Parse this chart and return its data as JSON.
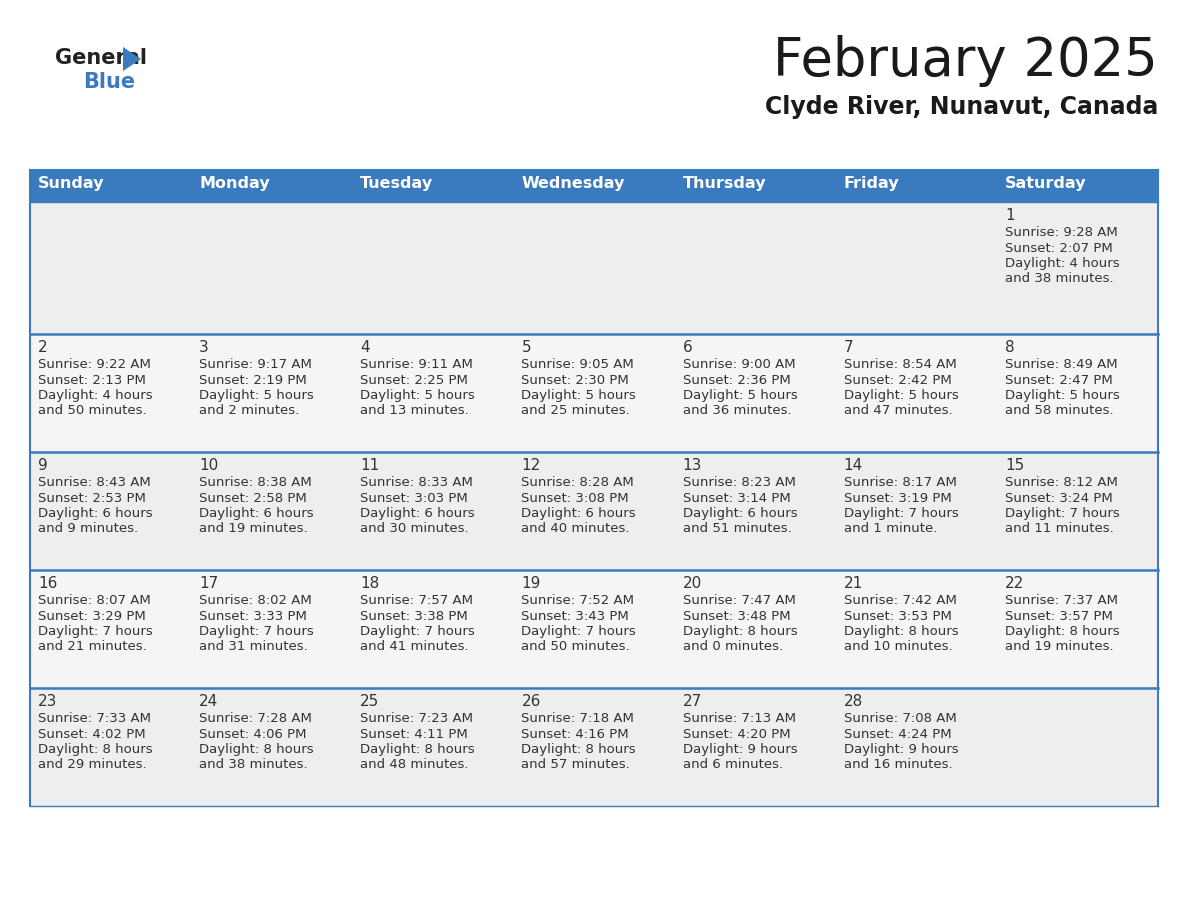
{
  "title": "February 2025",
  "subtitle": "Clyde River, Nunavut, Canada",
  "header_bg_color": "#3a7bbf",
  "header_text_color": "#ffffff",
  "cell_bg_row0": "#eeeeee",
  "cell_bg_row1": "#f5f5f5",
  "cell_bg_row2": "#eeeeee",
  "cell_bg_row3": "#f5f5f5",
  "cell_bg_row4": "#eeeeee",
  "border_color": "#3a7bbf",
  "day_names": [
    "Sunday",
    "Monday",
    "Tuesday",
    "Wednesday",
    "Thursday",
    "Friday",
    "Saturday"
  ],
  "title_color": "#1a1a1a",
  "subtitle_color": "#1a1a1a",
  "text_color": "#333333",
  "days": [
    {
      "day": 1,
      "col": 6,
      "row": 0,
      "sunrise": "9:28 AM",
      "sunset": "2:07 PM",
      "daylight": "4 hours and 38 minutes."
    },
    {
      "day": 2,
      "col": 0,
      "row": 1,
      "sunrise": "9:22 AM",
      "sunset": "2:13 PM",
      "daylight": "4 hours and 50 minutes."
    },
    {
      "day": 3,
      "col": 1,
      "row": 1,
      "sunrise": "9:17 AM",
      "sunset": "2:19 PM",
      "daylight": "5 hours and 2 minutes."
    },
    {
      "day": 4,
      "col": 2,
      "row": 1,
      "sunrise": "9:11 AM",
      "sunset": "2:25 PM",
      "daylight": "5 hours and 13 minutes."
    },
    {
      "day": 5,
      "col": 3,
      "row": 1,
      "sunrise": "9:05 AM",
      "sunset": "2:30 PM",
      "daylight": "5 hours and 25 minutes."
    },
    {
      "day": 6,
      "col": 4,
      "row": 1,
      "sunrise": "9:00 AM",
      "sunset": "2:36 PM",
      "daylight": "5 hours and 36 minutes."
    },
    {
      "day": 7,
      "col": 5,
      "row": 1,
      "sunrise": "8:54 AM",
      "sunset": "2:42 PM",
      "daylight": "5 hours and 47 minutes."
    },
    {
      "day": 8,
      "col": 6,
      "row": 1,
      "sunrise": "8:49 AM",
      "sunset": "2:47 PM",
      "daylight": "5 hours and 58 minutes."
    },
    {
      "day": 9,
      "col": 0,
      "row": 2,
      "sunrise": "8:43 AM",
      "sunset": "2:53 PM",
      "daylight": "6 hours and 9 minutes."
    },
    {
      "day": 10,
      "col": 1,
      "row": 2,
      "sunrise": "8:38 AM",
      "sunset": "2:58 PM",
      "daylight": "6 hours and 19 minutes."
    },
    {
      "day": 11,
      "col": 2,
      "row": 2,
      "sunrise": "8:33 AM",
      "sunset": "3:03 PM",
      "daylight": "6 hours and 30 minutes."
    },
    {
      "day": 12,
      "col": 3,
      "row": 2,
      "sunrise": "8:28 AM",
      "sunset": "3:08 PM",
      "daylight": "6 hours and 40 minutes."
    },
    {
      "day": 13,
      "col": 4,
      "row": 2,
      "sunrise": "8:23 AM",
      "sunset": "3:14 PM",
      "daylight": "6 hours and 51 minutes."
    },
    {
      "day": 14,
      "col": 5,
      "row": 2,
      "sunrise": "8:17 AM",
      "sunset": "3:19 PM",
      "daylight": "7 hours and 1 minute."
    },
    {
      "day": 15,
      "col": 6,
      "row": 2,
      "sunrise": "8:12 AM",
      "sunset": "3:24 PM",
      "daylight": "7 hours and 11 minutes."
    },
    {
      "day": 16,
      "col": 0,
      "row": 3,
      "sunrise": "8:07 AM",
      "sunset": "3:29 PM",
      "daylight": "7 hours and 21 minutes."
    },
    {
      "day": 17,
      "col": 1,
      "row": 3,
      "sunrise": "8:02 AM",
      "sunset": "3:33 PM",
      "daylight": "7 hours and 31 minutes."
    },
    {
      "day": 18,
      "col": 2,
      "row": 3,
      "sunrise": "7:57 AM",
      "sunset": "3:38 PM",
      "daylight": "7 hours and 41 minutes."
    },
    {
      "day": 19,
      "col": 3,
      "row": 3,
      "sunrise": "7:52 AM",
      "sunset": "3:43 PM",
      "daylight": "7 hours and 50 minutes."
    },
    {
      "day": 20,
      "col": 4,
      "row": 3,
      "sunrise": "7:47 AM",
      "sunset": "3:48 PM",
      "daylight": "8 hours and 0 minutes."
    },
    {
      "day": 21,
      "col": 5,
      "row": 3,
      "sunrise": "7:42 AM",
      "sunset": "3:53 PM",
      "daylight": "8 hours and 10 minutes."
    },
    {
      "day": 22,
      "col": 6,
      "row": 3,
      "sunrise": "7:37 AM",
      "sunset": "3:57 PM",
      "daylight": "8 hours and 19 minutes."
    },
    {
      "day": 23,
      "col": 0,
      "row": 4,
      "sunrise": "7:33 AM",
      "sunset": "4:02 PM",
      "daylight": "8 hours and 29 minutes."
    },
    {
      "day": 24,
      "col": 1,
      "row": 4,
      "sunrise": "7:28 AM",
      "sunset": "4:06 PM",
      "daylight": "8 hours and 38 minutes."
    },
    {
      "day": 25,
      "col": 2,
      "row": 4,
      "sunrise": "7:23 AM",
      "sunset": "4:11 PM",
      "daylight": "8 hours and 48 minutes."
    },
    {
      "day": 26,
      "col": 3,
      "row": 4,
      "sunrise": "7:18 AM",
      "sunset": "4:16 PM",
      "daylight": "8 hours and 57 minutes."
    },
    {
      "day": 27,
      "col": 4,
      "row": 4,
      "sunrise": "7:13 AM",
      "sunset": "4:20 PM",
      "daylight": "9 hours and 6 minutes."
    },
    {
      "day": 28,
      "col": 5,
      "row": 4,
      "sunrise": "7:08 AM",
      "sunset": "4:24 PM",
      "daylight": "9 hours and 16 minutes."
    }
  ]
}
